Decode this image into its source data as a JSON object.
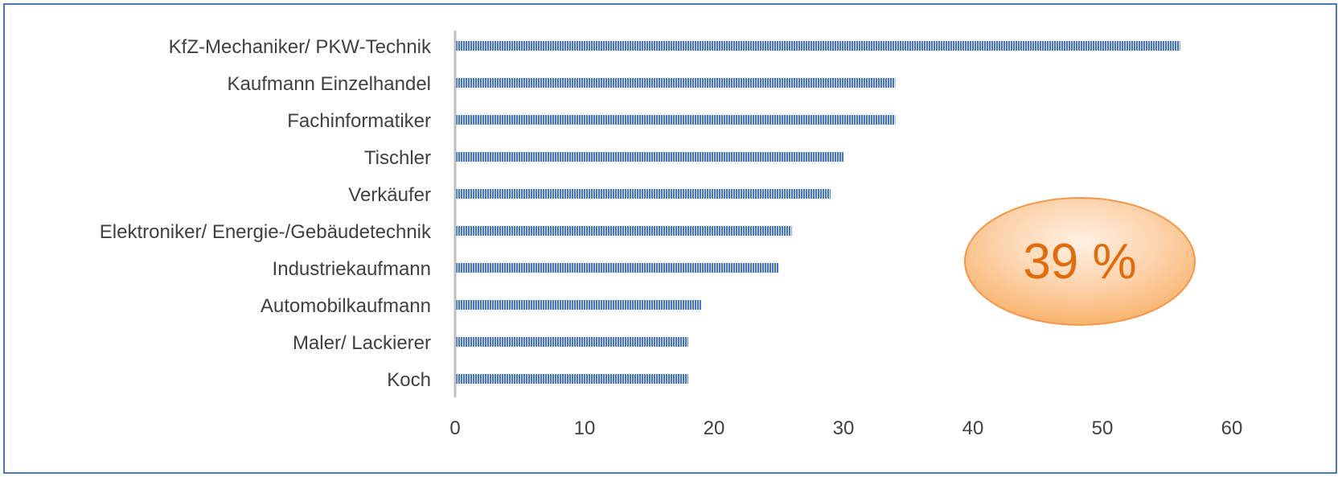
{
  "chart_data": {
    "type": "bar",
    "orientation": "horizontal",
    "categories": [
      "KfZ-Mechaniker/ PKW-Technik",
      "Kaufmann Einzelhandel",
      "Fachinformatiker",
      "Tischler",
      "Verkäufer",
      "Elektroniker/ Energie-/Gebäudetechnik",
      "Industriekaufmann",
      "Automobilkaufmann",
      "Maler/ Lackierer",
      "Koch"
    ],
    "values": [
      56,
      34,
      34,
      30,
      29,
      26,
      25,
      19,
      18,
      18
    ],
    "xlim": [
      0,
      60
    ],
    "xticks": [
      "0",
      "10",
      "20",
      "30",
      "40",
      "50",
      "60"
    ],
    "grid": false,
    "legend": "none",
    "bar_color": "#4472c4"
  },
  "badge": {
    "text": "39 %",
    "text_color": "#e36c0a",
    "fill_color": "#fbc08a",
    "border_color": "#f79646"
  },
  "frame_color": "#4a7ab5"
}
